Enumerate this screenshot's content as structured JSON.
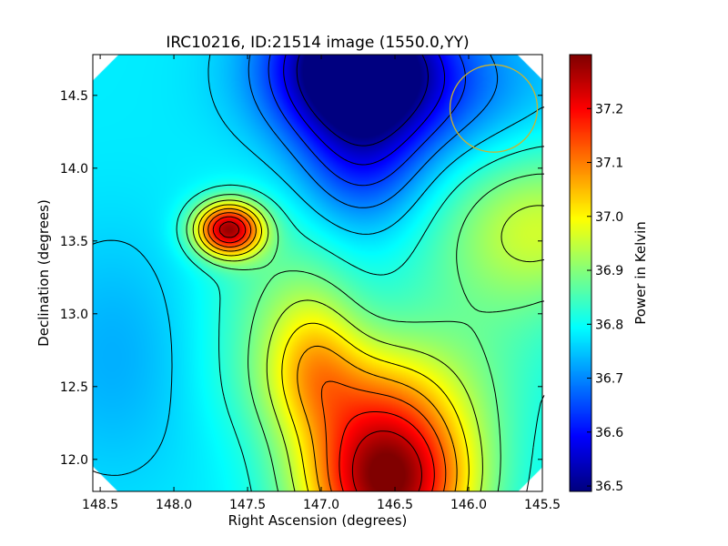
{
  "chart_data": {
    "type": "heatmap",
    "title": "IRC10216, ID:21514 image (1550.0,YY)",
    "xlabel": "Right Ascension (degrees)",
    "ylabel": "Declination (degrees)",
    "colorbar_label": "Power in Kelvin",
    "xlim": [
      148.55,
      145.5
    ],
    "ylim": [
      11.78,
      14.78
    ],
    "x_ticks": [
      "148.5",
      "148.0",
      "147.5",
      "147.0",
      "146.5",
      "146.0",
      "145.5"
    ],
    "x_tick_values": [
      148.5,
      148.0,
      147.5,
      147.0,
      146.5,
      146.0,
      145.5
    ],
    "y_ticks": [
      "12.0",
      "12.5",
      "13.0",
      "13.5",
      "14.0",
      "14.5"
    ],
    "y_tick_values": [
      12.0,
      12.5,
      13.0,
      13.5,
      14.0,
      14.5
    ],
    "colorbar_range": [
      36.49,
      37.3
    ],
    "colorbar_ticks": [
      "36.5",
      "36.6",
      "36.7",
      "36.8",
      "36.9",
      "37.0",
      "37.1",
      "37.2"
    ],
    "colorbar_tick_values": [
      36.5,
      36.6,
      36.7,
      36.8,
      36.9,
      37.0,
      37.1,
      37.2
    ],
    "colormap": "jet",
    "contour_levels": [
      36.52,
      36.58,
      36.64,
      36.7,
      36.76,
      36.82,
      36.88,
      36.94,
      37.0,
      37.06,
      37.12,
      37.18,
      37.24
    ],
    "background_level": 36.78,
    "features": [
      {
        "kind": "peak",
        "ra": 147.63,
        "dec": 13.58,
        "amplitude": 0.47,
        "sigma_ra": 0.16,
        "sigma_dec": 0.13
      },
      {
        "kind": "peak",
        "ra": 147.3,
        "dec": 13.1,
        "amplitude": 0.08,
        "sigma_ra": 0.35,
        "sigma_dec": 0.5
      },
      {
        "kind": "peak",
        "ra": 147.05,
        "dec": 12.7,
        "amplitude": 0.14,
        "sigma_ra": 0.22,
        "sigma_dec": 0.35
      },
      {
        "kind": "peak",
        "ra": 146.55,
        "dec": 11.85,
        "amplitude": 0.52,
        "sigma_ra": 0.4,
        "sigma_dec": 0.42
      },
      {
        "kind": "peak",
        "ra": 146.75,
        "dec": 12.5,
        "amplitude": 0.12,
        "sigma_ra": 0.5,
        "sigma_dec": 0.3
      },
      {
        "kind": "peak",
        "ra": 145.5,
        "dec": 13.6,
        "amplitude": 0.16,
        "sigma_ra": 0.45,
        "sigma_dec": 0.38
      },
      {
        "kind": "peak",
        "ra": 146.0,
        "dec": 12.9,
        "amplitude": 0.06,
        "sigma_ra": 0.5,
        "sigma_dec": 0.6
      },
      {
        "kind": "trough",
        "ra": 146.78,
        "dec": 14.72,
        "amplitude": -0.34,
        "sigma_ra": 0.38,
        "sigma_dec": 0.33
      },
      {
        "kind": "trough",
        "ra": 146.72,
        "dec": 14.05,
        "amplitude": -0.14,
        "sigma_ra": 0.3,
        "sigma_dec": 0.35
      },
      {
        "kind": "trough",
        "ra": 146.4,
        "dec": 14.55,
        "amplitude": -0.12,
        "sigma_ra": 0.6,
        "sigma_dec": 0.35
      },
      {
        "kind": "trough",
        "ra": 148.4,
        "dec": 12.7,
        "amplitude": -0.05,
        "sigma_ra": 0.4,
        "sigma_dec": 0.6
      }
    ],
    "beam_circle": {
      "ra": 145.83,
      "dec": 14.41,
      "radius_deg": 0.3,
      "color": "#c8b432"
    },
    "edge_color": "#000000"
  }
}
